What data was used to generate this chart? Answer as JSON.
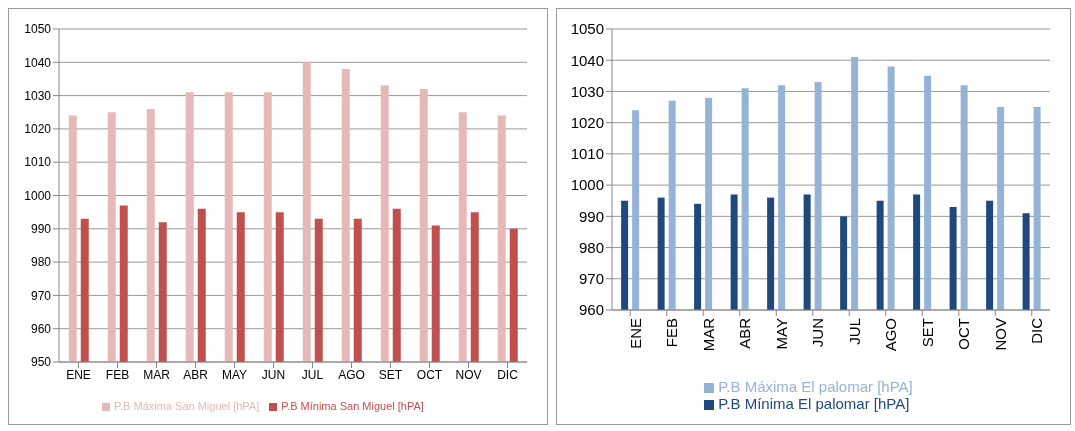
{
  "chart_data": [
    {
      "type": "bar",
      "categories": [
        "ENE",
        "FEB",
        "MAR",
        "ABR",
        "MAY",
        "JUN",
        "JUL",
        "AGO",
        "SET",
        "OCT",
        "NOV",
        "DIC"
      ],
      "series": [
        {
          "name": "P.B Máxima San Miguel [hPA]",
          "color": "#e6b9b8",
          "values": [
            1024,
            1025,
            1026,
            1031,
            1031,
            1031,
            1040,
            1038,
            1033,
            1032,
            1025,
            1024
          ]
        },
        {
          "name": "P.B Mínima San Miguel [hPA]",
          "color": "#c0504d",
          "values": [
            993,
            997,
            992,
            996,
            995,
            995,
            993,
            993,
            996,
            991,
            995,
            990
          ]
        }
      ],
      "ylim": [
        950,
        1050
      ],
      "yticks": [
        950,
        960,
        970,
        980,
        990,
        1000,
        1010,
        1020,
        1030,
        1040,
        1050
      ],
      "grid": "y",
      "legend": "bottom"
    },
    {
      "type": "bar",
      "categories": [
        "ENE",
        "FEB",
        "MAR",
        "ABR",
        "MAY",
        "JUN",
        "JUL",
        "AGO",
        "SET",
        "OCT",
        "NOV",
        "DIC"
      ],
      "series": [
        {
          "name": "P.B Mínima El palomar [hPA]",
          "color": "#1f497d",
          "values": [
            995,
            996,
            994,
            997,
            996,
            997,
            990,
            995,
            997,
            993,
            995,
            991
          ]
        },
        {
          "name": "P.B Máxima El palomar [hPA]",
          "color": "#95b3d7",
          "values": [
            1024,
            1027,
            1028,
            1031,
            1032,
            1033,
            1041,
            1038,
            1035,
            1032,
            1025,
            1025
          ]
        }
      ],
      "ylim": [
        960,
        1050
      ],
      "yticks": [
        960,
        970,
        980,
        990,
        1000,
        1010,
        1020,
        1030,
        1040,
        1050
      ],
      "grid": "y",
      "legend": "bottom"
    }
  ]
}
